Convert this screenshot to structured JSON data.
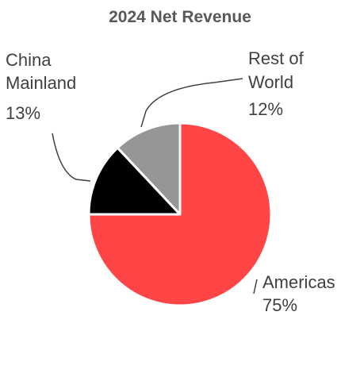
{
  "chart_data": {
    "type": "pie",
    "title": "2024 Net Revenue",
    "slices": [
      {
        "name": "Americas",
        "value": 75,
        "value_label": "75%",
        "color": "#FF4545"
      },
      {
        "name": "China Mainland",
        "value": 13,
        "value_label": "13%",
        "color": "#000000"
      },
      {
        "name": "Rest of World",
        "value": 12,
        "value_label": "12%",
        "color": "#969696"
      }
    ],
    "legend": "none",
    "data_labels": "outside with leader lines"
  }
}
